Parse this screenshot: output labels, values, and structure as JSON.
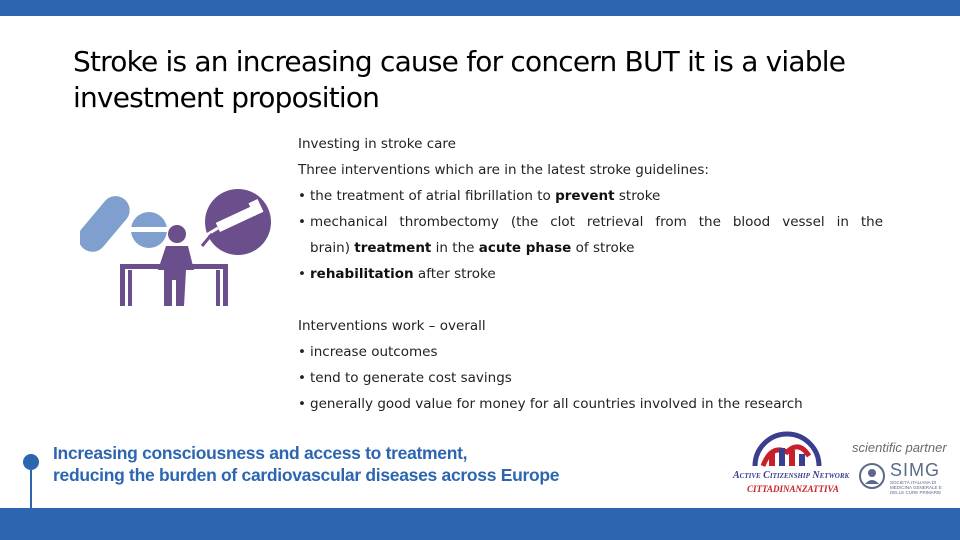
{
  "title": "Stroke is an increasing cause for concern BUT it is a viable investment proposition",
  "section1": {
    "heading": "Investing in stroke care",
    "intro": "Three interventions which are in the latest stroke guidelines:",
    "bullet1": {
      "pre": "the treatment of atrial fibrillation to ",
      "bold": "prevent",
      "post": " stroke"
    },
    "bullet2": {
      "line1": "mechanical thrombectomy (the clot retrieval from the blood vessel in the",
      "pre": "brain) ",
      "bold1": "treatment",
      "mid": " in the ",
      "bold2": "acute phase",
      "post": " of stroke"
    },
    "bullet3": {
      "bold": "rehabilitation",
      "post": " after stroke"
    }
  },
  "section2": {
    "heading": "Interventions work – overall",
    "items": [
      "increase outcomes",
      "tend to generate cost savings",
      "generally good value for money for all countries involved in the research"
    ]
  },
  "bullet_char": "•",
  "footer": {
    "line1": "Increasing consciousness and access to treatment,",
    "line2": "reducing the burden of cardiovascular diseases across Europe"
  },
  "logos": {
    "acn_name": "Active Citizenship Network",
    "acn_sub": "CITTADINANZATTIVA",
    "scientific_partner": "scientific partner",
    "simg_name": "SIMG",
    "simg_sub": "SOCIETÀ ITALIANA DI MEDICINA GENERALE E DELLE CURE PRIMARIE"
  },
  "colors": {
    "brand_blue": "#2d66b0",
    "icon_purple": "#6b4e8c",
    "icon_blue": "#7f9fcf",
    "acn_red": "#c8202a",
    "acn_navy": "#3a3e8f"
  },
  "icons": [
    "pills-icon",
    "syringe-icon",
    "rehabilitation-figure-icon"
  ]
}
